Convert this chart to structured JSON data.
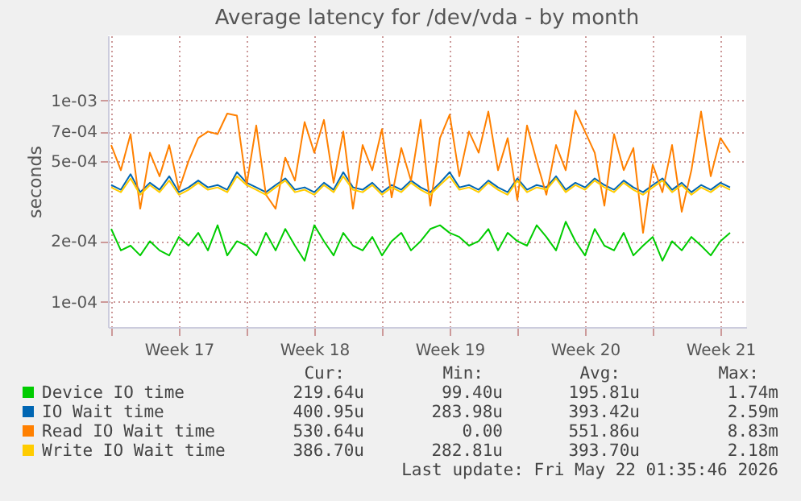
{
  "chart_data": {
    "type": "line",
    "title": "Average latency for /dev/vda - by month",
    "ylabel": "seconds",
    "log": "y",
    "grid": true,
    "legend": "bottom",
    "line_style": "solid",
    "x": [
      "2026-04-20T00:00",
      "2026-04-20T12:00",
      "2026-04-21T00:00",
      "2026-04-21T12:00",
      "2026-04-22T00:00",
      "2026-04-22T12:00",
      "2026-04-23T00:00",
      "2026-04-23T12:00",
      "2026-04-24T00:00",
      "2026-04-24T12:00",
      "2026-04-25T00:00",
      "2026-04-25T12:00",
      "2026-04-26T00:00",
      "2026-04-26T12:00",
      "2026-04-27T00:00",
      "2026-04-27T12:00",
      "2026-04-28T00:00",
      "2026-04-28T12:00",
      "2026-04-29T00:00",
      "2026-04-29T12:00",
      "2026-04-30T00:00",
      "2026-04-30T12:00",
      "2026-05-01T00:00",
      "2026-05-01T12:00",
      "2026-05-02T00:00",
      "2026-05-02T12:00",
      "2026-05-03T00:00",
      "2026-05-03T12:00",
      "2026-05-04T00:00",
      "2026-05-04T12:00",
      "2026-05-05T00:00",
      "2026-05-05T12:00",
      "2026-05-06T00:00",
      "2026-05-06T12:00",
      "2026-05-07T00:00",
      "2026-05-07T12:00",
      "2026-05-08T00:00",
      "2026-05-08T12:00",
      "2026-05-09T00:00",
      "2026-05-09T12:00",
      "2026-05-10T00:00",
      "2026-05-10T12:00",
      "2026-05-11T00:00",
      "2026-05-11T12:00",
      "2026-05-12T00:00",
      "2026-05-12T12:00",
      "2026-05-13T00:00",
      "2026-05-13T12:00",
      "2026-05-14T00:00",
      "2026-05-14T12:00",
      "2026-05-15T00:00",
      "2026-05-15T12:00",
      "2026-05-16T00:00",
      "2026-05-16T12:00",
      "2026-05-17T00:00",
      "2026-05-17T12:00",
      "2026-05-18T00:00",
      "2026-05-18T12:00",
      "2026-05-19T00:00",
      "2026-05-19T12:00",
      "2026-05-20T00:00",
      "2026-05-20T12:00",
      "2026-05-21T00:00",
      "2026-05-21T12:00",
      "2026-05-22T00:00"
    ],
    "xlim": [
      "2026-04-19T20:00",
      "2026-05-22T20:00"
    ],
    "xticks": [
      {
        "value": "2026-04-20",
        "label": null
      },
      {
        "value": "2026-04-23T12:00",
        "label": "Week 17"
      },
      {
        "value": "2026-04-27",
        "label": null
      },
      {
        "value": "2026-04-30T12:00",
        "label": "Week 18"
      },
      {
        "value": "2026-05-04",
        "label": null
      },
      {
        "value": "2026-05-07T12:00",
        "label": "Week 19"
      },
      {
        "value": "2026-05-11",
        "label": null
      },
      {
        "value": "2026-05-14T12:00",
        "label": "Week 20"
      },
      {
        "value": "2026-05-18",
        "label": null
      },
      {
        "value": "2026-05-21T12:00",
        "label": "Week 21"
      }
    ],
    "ylim": [
      7.5e-05,
      0.0021
    ],
    "yticks": [
      {
        "value": 0.0001,
        "label": "1e-04"
      },
      {
        "value": 0.0002,
        "label": "2e-04"
      },
      {
        "value": 0.0005,
        "label": "5e-04"
      },
      {
        "value": 0.0007,
        "label": "7e-04"
      },
      {
        "value": 0.001,
        "label": "1e-03"
      }
    ],
    "series": [
      {
        "name": "Device IO time",
        "color": "#00cc00",
        "values": [
          0.00023,
          0.00018,
          0.00019,
          0.00017,
          0.0002,
          0.00018,
          0.00017,
          0.00021,
          0.00019,
          0.00022,
          0.00018,
          0.00024,
          0.00017,
          0.0002,
          0.00019,
          0.00017,
          0.00022,
          0.00018,
          0.00023,
          0.00019,
          0.00016,
          0.00024,
          0.0002,
          0.00017,
          0.00022,
          0.00019,
          0.00018,
          0.00021,
          0.00017,
          0.0002,
          0.00022,
          0.00018,
          0.0002,
          0.00023,
          0.00024,
          0.00022,
          0.00021,
          0.00019,
          0.0002,
          0.00023,
          0.00018,
          0.00022,
          0.0002,
          0.00019,
          0.00024,
          0.00021,
          0.00018,
          0.00025,
          0.0002,
          0.00017,
          0.00023,
          0.00019,
          0.00018,
          0.00022,
          0.00017,
          0.00019,
          0.00021,
          0.00016,
          0.0002,
          0.00018,
          0.00021,
          0.00019,
          0.00017,
          0.0002,
          0.00022
        ]
      },
      {
        "name": "IO Wait time",
        "color": "#0066b3",
        "values": [
          0.00038,
          0.00036,
          0.00043,
          0.00035,
          0.00039,
          0.00036,
          0.00042,
          0.00035,
          0.00037,
          0.0004,
          0.00037,
          0.00038,
          0.00036,
          0.00044,
          0.00039,
          0.00037,
          0.00035,
          0.00038,
          0.00041,
          0.00036,
          0.00037,
          0.00035,
          0.00039,
          0.00036,
          0.00044,
          0.00037,
          0.00036,
          0.00039,
          0.00035,
          0.00038,
          0.00036,
          0.0004,
          0.00037,
          0.00035,
          0.00039,
          0.00044,
          0.00037,
          0.00038,
          0.00036,
          0.0004,
          0.00037,
          0.00035,
          0.00041,
          0.00036,
          0.00038,
          0.00037,
          0.00042,
          0.00036,
          0.00039,
          0.00037,
          0.00041,
          0.00038,
          0.00036,
          0.0004,
          0.00037,
          0.00035,
          0.00038,
          0.00041,
          0.00036,
          0.00039,
          0.00035,
          0.00038,
          0.00036,
          0.00039,
          0.00037
        ]
      },
      {
        "name": "Read IO Wait time",
        "color": "#ff8000",
        "values": [
          0.0006,
          0.00045,
          0.00068,
          0.00029,
          0.00055,
          0.00042,
          0.0006,
          0.00036,
          0.0005,
          0.00065,
          0.0007,
          0.00068,
          0.00086,
          0.00084,
          0.00038,
          0.00075,
          0.00034,
          0.00029,
          0.00052,
          0.0004,
          0.00078,
          0.00055,
          0.0008,
          0.00039,
          0.0007,
          0.00029,
          0.0006,
          0.00045,
          0.00072,
          0.00033,
          0.00058,
          0.0004,
          0.0008,
          0.0003,
          0.00065,
          0.00085,
          0.00042,
          0.0007,
          0.00055,
          0.00088,
          0.00045,
          0.00065,
          0.00032,
          0.00075,
          0.0005,
          0.00034,
          0.0006,
          0.00045,
          0.00089,
          0.0007,
          0.00055,
          0.0003,
          0.00068,
          0.00045,
          0.00058,
          0.00022,
          0.00048,
          0.00035,
          0.0006,
          0.00028,
          0.00045,
          0.00088,
          0.00042,
          0.00065,
          0.00055
        ]
      },
      {
        "name": "Write IO Wait time",
        "color": "#ffcc00",
        "values": [
          0.00037,
          0.00035,
          0.00041,
          0.00034,
          0.00038,
          0.00035,
          0.0004,
          0.00034,
          0.00036,
          0.00039,
          0.00036,
          0.00037,
          0.00035,
          0.00042,
          0.00038,
          0.00036,
          0.00034,
          0.00037,
          0.0004,
          0.00035,
          0.00036,
          0.00034,
          0.00038,
          0.00035,
          0.00042,
          0.00036,
          0.00035,
          0.00038,
          0.00034,
          0.00037,
          0.00035,
          0.00039,
          0.00036,
          0.00034,
          0.00038,
          0.00042,
          0.00036,
          0.00037,
          0.00035,
          0.00039,
          0.00036,
          0.00034,
          0.0004,
          0.00035,
          0.00037,
          0.00036,
          0.00041,
          0.00035,
          0.00038,
          0.00036,
          0.0004,
          0.00037,
          0.00035,
          0.00039,
          0.00036,
          0.00034,
          0.00037,
          0.0004,
          0.00035,
          0.00038,
          0.00034,
          0.00037,
          0.00035,
          0.00038,
          0.00036
        ]
      }
    ],
    "annotations": [
      "Cur:",
      "Min:",
      "Avg:",
      "Max:",
      "219.64u",
      "99.40u",
      "195.81u",
      "1.74m",
      "400.95u",
      "283.98u",
      "393.42u",
      "2.59m",
      "530.64u",
      "0.00",
      "551.86u",
      "8.83m",
      "386.70u",
      "282.81u",
      "393.70u",
      "2.18m",
      "Last update: Fri May 22 01:35:46 2026"
    ]
  }
}
